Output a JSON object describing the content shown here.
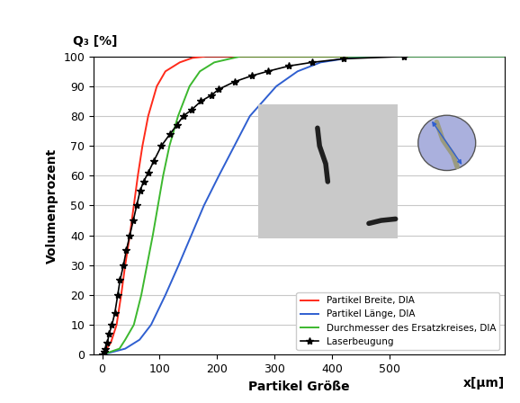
{
  "chart_data": {
    "type": "line",
    "y_label": "Volumenprozent",
    "x_label": "Partikel Größe",
    "annotations": [
      "Q₃ [%]",
      "x[µm]"
    ],
    "xlim": [
      -15,
      700
    ],
    "ylim": [
      0,
      100
    ],
    "xticks": [
      0,
      100,
      200,
      300,
      400,
      500
    ],
    "yticks": [
      0,
      10,
      20,
      30,
      40,
      50,
      60,
      70,
      80,
      90,
      100
    ],
    "grid": true,
    "legend": "lower right",
    "series": [
      {
        "name": "Partikel Breite, DIA",
        "color": "#ff2a1a",
        "line_style": "solid",
        "x": [
          0,
          15,
          25,
          33,
          40,
          48,
          55,
          62,
          70,
          80,
          95,
          110,
          135,
          157,
          180,
          700
        ],
        "values": [
          0,
          4,
          10,
          20,
          30,
          40,
          50,
          60,
          70,
          80,
          90,
          95,
          98,
          99.5,
          100,
          100
        ]
      },
      {
        "name": "Partikel Länge, DIA",
        "color": "#2f5fd0",
        "line_style": "solid",
        "x": [
          0,
          40,
          65,
          85,
          110,
          133,
          155,
          177,
          203,
          230,
          257,
          303,
          340,
          380,
          430,
          490,
          700
        ],
        "values": [
          0,
          2,
          5,
          10,
          20,
          30,
          40,
          50,
          60,
          70,
          80,
          90,
          95,
          98,
          99.5,
          100,
          100
        ]
      },
      {
        "name": "Durchmesser des Ersatzkreises, DIA",
        "color": "#3cb82e",
        "line_style": "solid",
        "x": [
          0,
          30,
          40,
          55,
          68,
          78,
          88,
          97,
          106,
          117,
          132,
          152,
          170,
          195,
          240,
          700
        ],
        "values": [
          0,
          2,
          5,
          10,
          20,
          30,
          40,
          50,
          60,
          70,
          80,
          90,
          95,
          98,
          100,
          100
        ]
      },
      {
        "name": "Laserbeugung",
        "color": "#000000",
        "line_style": "solid",
        "marker": "*",
        "x": [
          0,
          3,
          6,
          9,
          12,
          17,
          22,
          27,
          31,
          37,
          42,
          48,
          54,
          60,
          66,
          72,
          80,
          90,
          103,
          118,
          130,
          141,
          155,
          172,
          190,
          203,
          230,
          260,
          288,
          325,
          365,
          420,
          525
        ],
        "values": [
          0,
          1,
          2,
          4,
          7,
          10,
          14,
          20,
          25,
          30,
          35,
          40,
          45,
          50,
          55,
          58,
          61,
          65,
          70,
          74,
          77,
          80,
          82,
          85,
          87,
          89,
          91.5,
          93.5,
          95,
          96.8,
          98,
          99.2,
          100
        ]
      }
    ]
  }
}
